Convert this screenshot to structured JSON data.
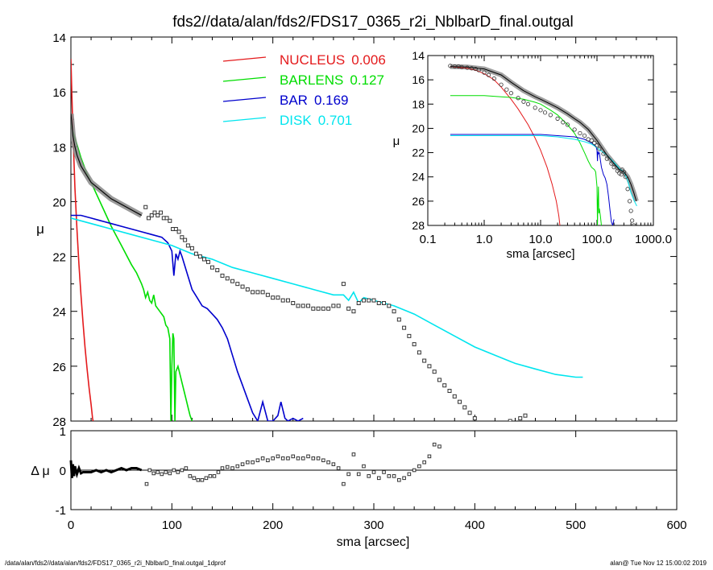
{
  "footer": {
    "left": "/data/alan/fds2//data/alan/fds2/FDS17_0365_r2i_NblbarD_final.outgal_1dprof",
    "right": "alan@  Tue Nov 12 15:00:02 2019"
  },
  "chart_data": [
    {
      "panel": "main",
      "type": "line",
      "title": "fds2//data/alan/fds2/FDS17_0365_r2i_NblbarD_final.outgal",
      "xlabel": "",
      "ylabel": "μ",
      "xlim": [
        0,
        600
      ],
      "ylim": [
        28,
        14
      ],
      "yaxis_inverted": true,
      "xticks": [
        0,
        100,
        200,
        300,
        400,
        500,
        600
      ],
      "yticks": [
        14,
        16,
        18,
        20,
        22,
        24,
        26,
        28
      ],
      "legend_position": "top-center",
      "series": [
        {
          "name": "NUCLEUS",
          "fraction": "0.006",
          "color": "#e41a1c",
          "x": [
            0,
            1,
            2,
            3,
            4,
            6,
            8,
            10,
            12,
            14,
            16,
            18,
            20,
            21.5,
            22
          ],
          "y": [
            14.8,
            16.2,
            17.4,
            18.5,
            19.5,
            21.0,
            22.3,
            23.4,
            24.4,
            25.3,
            26.1,
            26.8,
            27.4,
            27.9,
            28.0
          ]
        },
        {
          "name": "BARLENS",
          "fraction": "0.127",
          "color": "#00dd00",
          "x": [
            0,
            5,
            10,
            15,
            20,
            30,
            40,
            50,
            60,
            65,
            70,
            72,
            74,
            76,
            78,
            80,
            82,
            84,
            86,
            88,
            90,
            92,
            94,
            96,
            98,
            99,
            100,
            101,
            102,
            103,
            104,
            106,
            108,
            110,
            112,
            114,
            116,
            118,
            120
          ],
          "y": [
            17.2,
            17.8,
            18.4,
            18.9,
            19.3,
            20.1,
            20.9,
            21.6,
            22.3,
            22.6,
            23.0,
            23.2,
            23.5,
            23.3,
            23.6,
            23.7,
            23.4,
            23.8,
            23.9,
            24.0,
            24.1,
            24.2,
            24.5,
            24.6,
            25.0,
            28.0,
            26.0,
            24.8,
            25.0,
            28.0,
            26.2,
            26.0,
            26.3,
            26.6,
            26.9,
            27.2,
            27.5,
            27.8,
            28.0
          ]
        },
        {
          "name": "BAR",
          "fraction": "0.169",
          "color": "#0000cd",
          "x": [
            0,
            10,
            20,
            30,
            40,
            50,
            60,
            70,
            80,
            90,
            96,
            100,
            102,
            104,
            106,
            108,
            110,
            115,
            120,
            125,
            130,
            135,
            140,
            145,
            150,
            155,
            160,
            165,
            170,
            175,
            180,
            185,
            190,
            195,
            200,
            205,
            208,
            212,
            215,
            220,
            225,
            230
          ],
          "y": [
            20.5,
            20.5,
            20.6,
            20.7,
            20.8,
            20.9,
            21.0,
            21.1,
            21.2,
            21.3,
            21.5,
            21.8,
            22.7,
            21.9,
            22.1,
            21.8,
            22.0,
            22.6,
            23.2,
            23.5,
            23.8,
            23.9,
            24.1,
            24.3,
            24.6,
            25.0,
            25.6,
            26.2,
            26.7,
            27.2,
            27.7,
            28.0,
            27.3,
            28.0,
            28.0,
            27.8,
            27.3,
            27.9,
            28.0,
            27.9,
            28.0,
            27.9
          ]
        },
        {
          "name": "DISK",
          "fraction": "0.701",
          "color": "#00e5ee",
          "x": [
            0,
            20,
            40,
            60,
            80,
            100,
            120,
            140,
            160,
            180,
            200,
            220,
            240,
            260,
            270,
            275,
            280,
            285,
            290,
            300,
            320,
            340,
            360,
            380,
            400,
            420,
            440,
            460,
            480,
            500,
            507
          ],
          "y": [
            20.6,
            20.8,
            21.0,
            21.2,
            21.4,
            21.6,
            21.9,
            22.1,
            22.4,
            22.6,
            22.8,
            23.0,
            23.2,
            23.4,
            23.4,
            23.6,
            23.3,
            23.7,
            23.5,
            23.6,
            23.8,
            24.1,
            24.5,
            24.9,
            25.3,
            25.6,
            25.9,
            26.1,
            26.3,
            26.4,
            26.4
          ]
        },
        {
          "name": "model",
          "color": "#000000",
          "x": [
            0,
            1,
            2,
            4,
            6,
            10,
            15,
            20,
            30,
            40,
            50,
            60,
            70
          ],
          "y": [
            16.8,
            17.2,
            17.6,
            18.0,
            18.3,
            18.7,
            19.0,
            19.3,
            19.6,
            19.9,
            20.1,
            20.3,
            20.5
          ]
        }
      ],
      "points": {
        "x": [
          74,
          77,
          80,
          83,
          86,
          89,
          92,
          95,
          98,
          101,
          104,
          107,
          110,
          113,
          116,
          120,
          124,
          128,
          132,
          136,
          140,
          145,
          150,
          155,
          160,
          165,
          170,
          175,
          180,
          185,
          190,
          195,
          200,
          205,
          210,
          215,
          220,
          225,
          230,
          235,
          240,
          245,
          250,
          255,
          260,
          265,
          270,
          275,
          280,
          285,
          290,
          295,
          300,
          305,
          310,
          315,
          320,
          325,
          330,
          335,
          340,
          345,
          350,
          355,
          360,
          365,
          370,
          375,
          380,
          385,
          390,
          395,
          400,
          405,
          410,
          415,
          420,
          425,
          430,
          435,
          440,
          445,
          450
        ],
        "y": [
          20.2,
          20.6,
          20.5,
          20.4,
          20.5,
          20.4,
          20.6,
          20.6,
          20.7,
          21.0,
          21.0,
          21.1,
          21.3,
          21.4,
          21.6,
          21.7,
          21.9,
          22.0,
          22.1,
          22.2,
          22.4,
          22.5,
          22.7,
          22.8,
          22.9,
          23.0,
          23.1,
          23.2,
          23.3,
          23.3,
          23.3,
          23.4,
          23.5,
          23.5,
          23.6,
          23.6,
          23.7,
          23.8,
          23.8,
          23.8,
          23.9,
          23.9,
          23.9,
          23.9,
          23.8,
          23.8,
          23.0,
          23.9,
          24.0,
          23.7,
          23.6,
          23.6,
          23.6,
          23.7,
          23.7,
          23.8,
          24.0,
          24.3,
          24.6,
          24.9,
          25.2,
          25.5,
          25.8,
          26.0,
          26.2,
          26.5,
          26.7,
          26.9,
          27.1,
          27.3,
          27.5,
          27.7,
          27.9,
          28.1,
          28.2,
          28.4,
          28.5,
          28.6,
          28.3,
          28.0,
          28.1,
          27.9,
          27.8
        ]
      }
    },
    {
      "panel": "residual",
      "type": "scatter",
      "xlabel": "sma [arcsec]",
      "ylabel": "Δ μ",
      "xlim": [
        0,
        600
      ],
      "ylim": [
        -1,
        1
      ],
      "xticks": [
        0,
        100,
        200,
        300,
        400,
        500,
        600
      ],
      "yticks": [
        -1,
        0,
        1
      ],
      "zero_line": true,
      "line": {
        "x": [
          0,
          1,
          2,
          3,
          4,
          6,
          8,
          10,
          12,
          15,
          20,
          25,
          30,
          35,
          40,
          45,
          50,
          55,
          60,
          65,
          70
        ],
        "y": [
          0.25,
          -0.2,
          0.15,
          -0.15,
          0.1,
          -0.1,
          0.05,
          -0.08,
          -0.05,
          -0.05,
          -0.05,
          0.0,
          -0.05,
          0.0,
          -0.05,
          0.0,
          0.05,
          0.0,
          0.05,
          0.05,
          0.0
        ]
      },
      "points": {
        "x": [
          75,
          78,
          82,
          86,
          90,
          94,
          98,
          102,
          106,
          110,
          114,
          118,
          122,
          126,
          130,
          134,
          138,
          142,
          146,
          150,
          155,
          160,
          165,
          170,
          175,
          180,
          185,
          190,
          195,
          200,
          205,
          210,
          215,
          220,
          225,
          230,
          235,
          240,
          245,
          250,
          255,
          260,
          265,
          270,
          275,
          280,
          285,
          290,
          295,
          300,
          305,
          310,
          315,
          320,
          325,
          330,
          335,
          340,
          345,
          350,
          355,
          360,
          365
        ],
        "y": [
          -0.35,
          0.0,
          -0.08,
          -0.05,
          -0.1,
          -0.05,
          -0.08,
          0.0,
          -0.05,
          0.0,
          0.05,
          -0.15,
          -0.2,
          -0.25,
          -0.25,
          -0.2,
          -0.15,
          -0.15,
          -0.05,
          0.05,
          0.08,
          0.05,
          0.1,
          0.15,
          0.2,
          0.2,
          0.25,
          0.3,
          0.25,
          0.3,
          0.35,
          0.3,
          0.3,
          0.35,
          0.3,
          0.3,
          0.35,
          0.3,
          0.3,
          0.25,
          0.2,
          0.15,
          0.05,
          -0.35,
          -0.1,
          0.4,
          -0.1,
          0.1,
          -0.15,
          -0.05,
          -0.2,
          -0.05,
          -0.15,
          -0.15,
          -0.25,
          -0.2,
          -0.1,
          0.0,
          0.1,
          0.2,
          0.35,
          0.65,
          0.6
        ]
      }
    },
    {
      "panel": "inset",
      "type": "line",
      "xlabel": "sma [arcsec]",
      "ylabel": "μ",
      "xscale": "log",
      "xlim": [
        0.1,
        1000
      ],
      "ylim": [
        28,
        14
      ],
      "yaxis_inverted": true,
      "xticks": [
        0.1,
        1,
        10,
        100,
        1000
      ],
      "xtick_labels": [
        "0.1",
        "1.0",
        "10.0",
        "100.0",
        "1000.0"
      ],
      "yticks": [
        14,
        16,
        18,
        20,
        22,
        24,
        26,
        28
      ],
      "series": [
        {
          "name": "NUCLEUS",
          "color": "#e41a1c",
          "x": [
            0.25,
            0.3,
            0.4,
            0.5,
            0.7,
            1,
            1.5,
            2,
            3,
            4,
            6,
            8,
            10,
            13,
            16,
            19,
            21,
            22
          ],
          "y": [
            14.9,
            14.95,
            15.0,
            15.05,
            15.2,
            15.5,
            16.0,
            16.6,
            17.6,
            18.4,
            19.7,
            20.8,
            21.8,
            23.2,
            24.6,
            26.0,
            27.2,
            28.0
          ]
        },
        {
          "name": "BARLENS",
          "color": "#00dd00",
          "x": [
            0.25,
            0.5,
            1,
            2,
            3,
            5,
            8,
            10,
            15,
            20,
            30,
            40,
            50,
            60,
            70,
            80,
            90,
            95,
            100,
            102,
            104,
            106,
            108,
            110,
            115,
            120
          ],
          "y": [
            17.3,
            17.3,
            17.3,
            17.4,
            17.45,
            17.6,
            17.85,
            18.0,
            18.5,
            18.9,
            19.7,
            20.4,
            21.2,
            22.0,
            22.7,
            23.2,
            23.4,
            23.6,
            24.8,
            28.0,
            26.0,
            24.8,
            27.0,
            26.6,
            27.2,
            28.0
          ]
        },
        {
          "name": "BAR",
          "color": "#0000cd",
          "x": [
            0.25,
            1,
            3,
            10,
            20,
            40,
            60,
            80,
            96,
            100,
            102,
            104,
            106,
            110,
            120,
            130,
            140,
            150,
            160,
            170,
            180,
            190,
            200
          ],
          "y": [
            20.5,
            20.5,
            20.5,
            20.5,
            20.6,
            20.7,
            20.9,
            21.2,
            21.5,
            21.8,
            22.7,
            21.9,
            22.1,
            22.0,
            23.2,
            23.8,
            24.1,
            24.6,
            25.6,
            26.7,
            27.7,
            28.0,
            27.5
          ]
        },
        {
          "name": "DISK",
          "color": "#00e5ee",
          "x": [
            0.25,
            1,
            3,
            10,
            20,
            40,
            60,
            80,
            100,
            150,
            200,
            250,
            300,
            350,
            400,
            450,
            507
          ],
          "y": [
            20.6,
            20.6,
            20.6,
            20.6,
            20.7,
            20.9,
            21.1,
            21.3,
            21.6,
            22.2,
            22.8,
            23.3,
            23.6,
            24.3,
            25.3,
            25.9,
            26.4
          ]
        },
        {
          "name": "model",
          "color": "#000000",
          "x": [
            0.25,
            0.5,
            1,
            2,
            3,
            5,
            8,
            10,
            15,
            20,
            30,
            40,
            50,
            70,
            100,
            150,
            200,
            250,
            300,
            350,
            400,
            450,
            500
          ],
          "y": [
            14.9,
            14.95,
            15.1,
            15.6,
            16.2,
            16.9,
            17.4,
            17.6,
            18.0,
            18.3,
            18.8,
            19.2,
            19.5,
            20.1,
            21.0,
            22.2,
            22.9,
            23.4,
            23.6,
            24.0,
            24.6,
            25.3,
            26.0
          ]
        }
      ],
      "points": {
        "x": [
          0.25,
          0.3,
          0.35,
          0.4,
          0.5,
          0.6,
          0.7,
          0.8,
          1,
          1.2,
          1.5,
          2,
          2.5,
          3,
          4,
          5,
          6,
          8,
          10,
          12,
          15,
          20,
          25,
          30,
          40,
          50,
          60,
          70,
          80,
          90,
          100,
          110,
          130,
          150,
          180,
          200,
          230,
          250,
          270,
          280,
          300,
          320,
          350,
          380,
          400,
          420,
          450
        ],
        "y": [
          14.85,
          14.9,
          14.9,
          14.95,
          15.0,
          15.05,
          15.1,
          15.2,
          15.4,
          15.6,
          15.9,
          16.4,
          16.8,
          17.1,
          17.5,
          17.8,
          18.0,
          18.3,
          18.5,
          18.7,
          18.9,
          19.2,
          19.5,
          19.7,
          20.1,
          20.4,
          20.6,
          20.9,
          21.0,
          21.2,
          21.4,
          21.7,
          22.1,
          22.5,
          22.9,
          23.2,
          23.5,
          23.7,
          23.8,
          23.4,
          23.6,
          24.0,
          25.0,
          26.0,
          26.8,
          27.6,
          28.0
        ]
      }
    }
  ]
}
